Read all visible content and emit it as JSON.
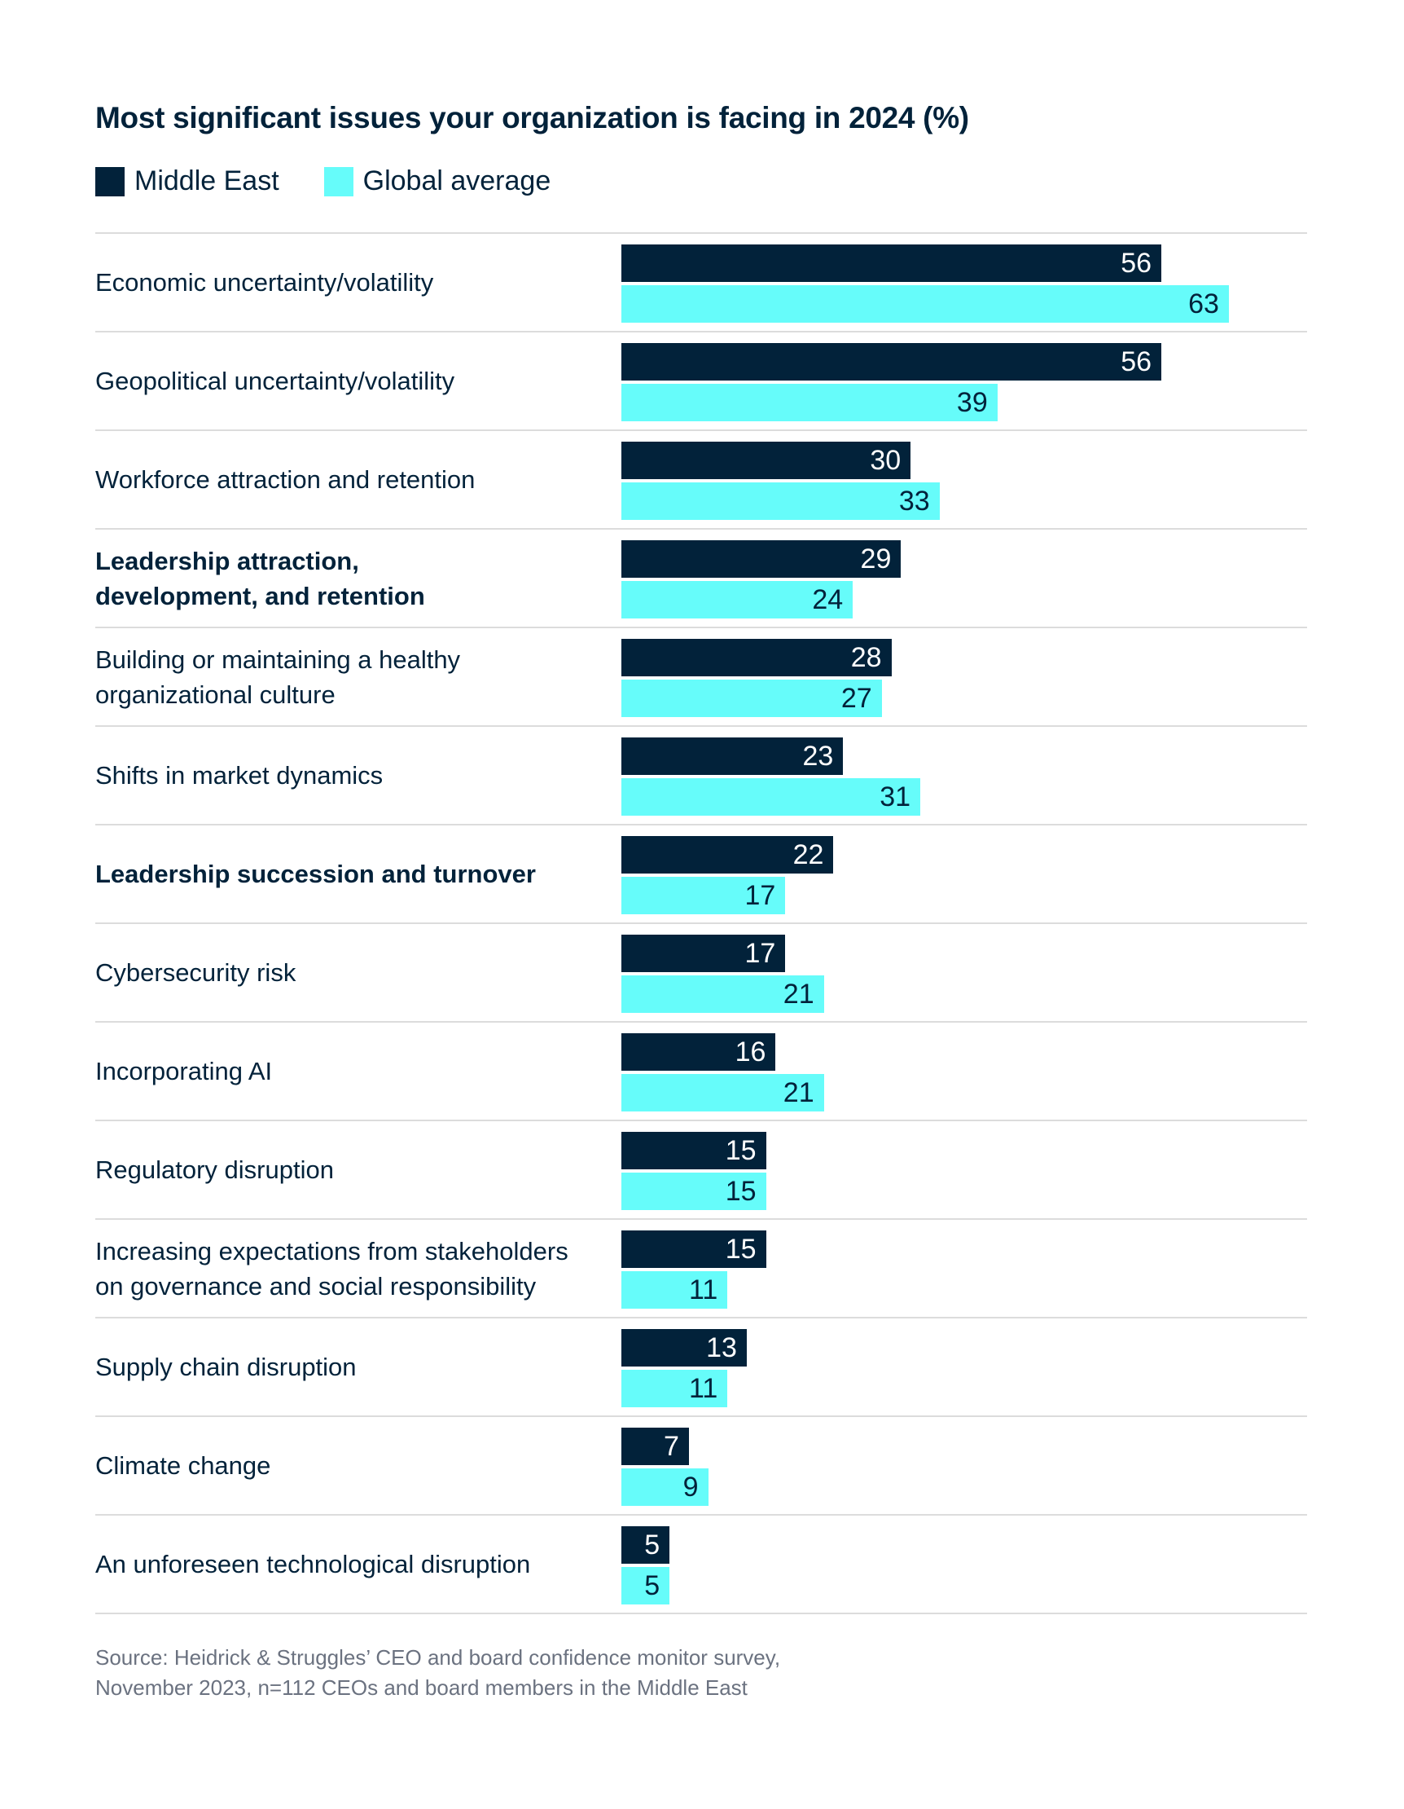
{
  "chart_data": {
    "type": "bar",
    "orientation": "horizontal",
    "title": "Most significant issues your organization is facing in 2024 (%)",
    "xlabel": "",
    "ylabel": "",
    "xlim": [
      0,
      70
    ],
    "grid": false,
    "legend_position": "top-left",
    "categories": [
      "Economic uncertainty/volatility",
      "Geopolitical uncertainty/volatility",
      "Workforce attraction and retention",
      "Leadership attraction, development, and retention",
      "Building or maintaining a healthy organizational culture",
      "Shifts in market dynamics",
      "Leadership succession and turnover",
      "Cybersecurity risk",
      "Incorporating AI",
      "Regulatory disruption",
      "Increasing expectations from stakeholders on governance and social responsibility",
      "Supply chain disruption",
      "Climate change",
      "An unforeseen technological disruption"
    ],
    "category_lines": [
      [
        "Economic uncertainty/volatility"
      ],
      [
        "Geopolitical uncertainty/volatility"
      ],
      [
        "Workforce attraction and retention"
      ],
      [
        "Leadership attraction,",
        "development, and retention"
      ],
      [
        "Building or maintaining a healthy",
        "organizational culture"
      ],
      [
        "Shifts in market dynamics"
      ],
      [
        "Leadership succession and turnover"
      ],
      [
        "Cybersecurity risk"
      ],
      [
        "Incorporating AI"
      ],
      [
        "Regulatory disruption"
      ],
      [
        "Increasing expectations from stakeholders",
        "on governance and social responsibility"
      ],
      [
        "Supply chain disruption"
      ],
      [
        "Climate change"
      ],
      [
        "An unforeseen technological disruption"
      ]
    ],
    "bold_categories": [
      3,
      6
    ],
    "series": [
      {
        "name": "Middle East",
        "color": "#02223a",
        "label_color": "#ffffff",
        "values": [
          56,
          56,
          30,
          29,
          28,
          23,
          22,
          17,
          16,
          15,
          15,
          13,
          7,
          5
        ]
      },
      {
        "name": "Global average",
        "color": "#66fcfa",
        "label_color": "#02223a",
        "values": [
          63,
          39,
          33,
          24,
          27,
          31,
          17,
          21,
          21,
          15,
          11,
          11,
          9,
          5
        ]
      }
    ],
    "source": [
      "Source: Heidrick & Struggles’ CEO and board confidence monitor survey,",
      "November 2023, n=112 CEOs and board members in the Middle East"
    ]
  }
}
